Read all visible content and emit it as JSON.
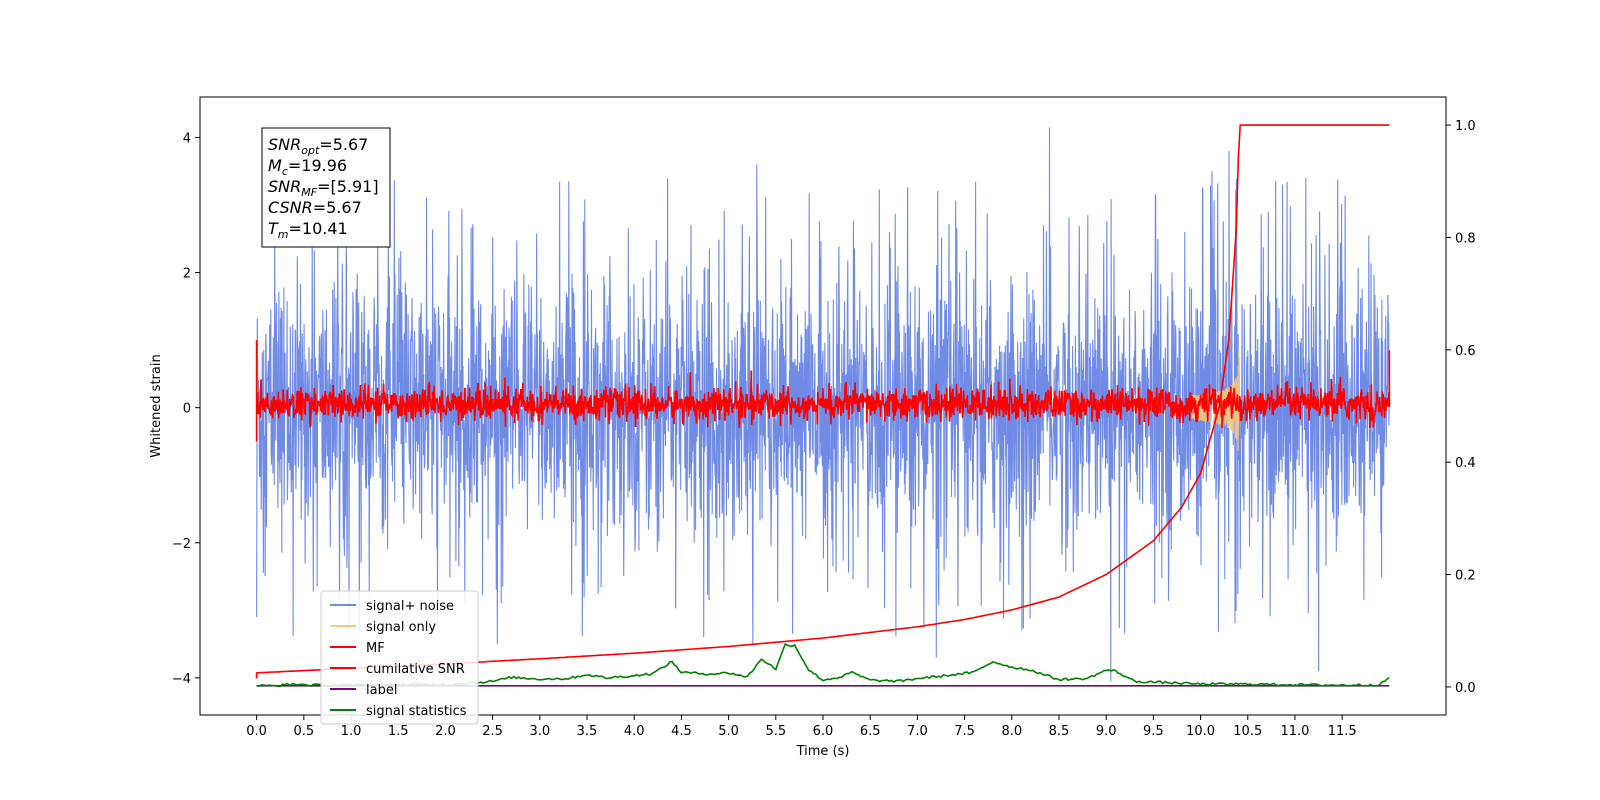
{
  "chart_data": {
    "type": "line",
    "title": "",
    "xlabel": "Time (s)",
    "ylabel": "Whitened strain",
    "ylabel_right": "",
    "xlim": [
      -0.6,
      12.6
    ],
    "ylim": [
      -4.55,
      4.6
    ],
    "ylim_right": [
      -0.05,
      1.05
    ],
    "grid": false,
    "legend_position": "lower-left",
    "x_ticks": [
      0.0,
      0.5,
      1.0,
      1.5,
      2.0,
      2.5,
      3.0,
      3.5,
      4.0,
      4.5,
      5.0,
      5.5,
      6.0,
      6.5,
      7.0,
      7.5,
      8.0,
      8.5,
      9.0,
      9.5,
      10.0,
      10.5,
      11.0,
      11.5
    ],
    "x_tick_labels": [
      "0.0",
      "0.5",
      "1.0",
      "1.5",
      "2.0",
      "2.5",
      "3.0",
      "3.5",
      "4.0",
      "4.5",
      "5.0",
      "5.5",
      "6.0",
      "6.5",
      "7.0",
      "7.5",
      "8.0",
      "8.5",
      "9.0",
      "9.5",
      "10.0",
      "10.5",
      "11.0",
      "11.5"
    ],
    "y_ticks": [
      -4,
      -2,
      0,
      2,
      4
    ],
    "y_tick_labels": [
      "−4",
      "−2",
      "0",
      "2",
      "4"
    ],
    "y_right_ticks": [
      0.0,
      0.2,
      0.4,
      0.6,
      0.8,
      1.0
    ],
    "y_right_tick_labels": [
      "0.0",
      "0.2",
      "0.4",
      "0.6",
      "0.8",
      "1.0"
    ],
    "series": [
      {
        "name": "signal+ noise",
        "axis": "left",
        "color": "#6f8be6",
        "description_values": "noise band roughly ±1.5 with spikes to about ±3.5; spikes near t=8.4 (4.15) and t=9.05 (-4.05)",
        "x_range": [
          0.0,
          12.0
        ],
        "envelope": [
          -1.5,
          1.5
        ],
        "peak_samples": [
          {
            "x": 0.0,
            "y": 3.1
          },
          {
            "x": 0.0,
            "y": -3.1
          },
          {
            "x": 5.3,
            "y": 3.6
          },
          {
            "x": 7.2,
            "y": -3.7
          },
          {
            "x": 8.4,
            "y": 4.15
          },
          {
            "x": 9.05,
            "y": -4.05
          },
          {
            "x": 10.3,
            "y": 3.8
          },
          {
            "x": 11.25,
            "y": -3.9
          }
        ]
      },
      {
        "name": "signal only",
        "axis": "left",
        "color": "#f5c97a",
        "chirp_peak_time": 10.41,
        "chirp_peak_amplitude": 1.1
      },
      {
        "name": "MF",
        "axis": "left",
        "color": "#ff0000",
        "x_range": [
          0.0,
          12.0
        ],
        "envelope": [
          -0.25,
          0.35
        ],
        "edge_values": [
          {
            "x": 0.0,
            "y": 1.0
          },
          {
            "x": 0.0,
            "y": -0.5
          },
          {
            "x": 12.0,
            "y": 0.85
          }
        ]
      },
      {
        "name": "cumilative SNR",
        "axis": "right",
        "color": "#ff0000",
        "x": [
          0.0,
          1.0,
          2.0,
          3.0,
          4.0,
          5.0,
          6.0,
          7.0,
          7.5,
          8.0,
          8.5,
          9.0,
          9.5,
          9.8,
          10.0,
          10.2,
          10.3,
          10.38,
          10.41,
          10.45,
          11.0,
          11.5,
          12.0
        ],
        "values": [
          0.025,
          0.033,
          0.041,
          0.05,
          0.06,
          0.072,
          0.087,
          0.107,
          0.12,
          0.137,
          0.16,
          0.2,
          0.26,
          0.32,
          0.38,
          0.5,
          0.62,
          0.82,
          1.0,
          1.0,
          1.0,
          1.0,
          1.0
        ]
      },
      {
        "name": "label",
        "axis": "right",
        "color": "#6a0d75",
        "x": [
          0.0,
          12.0
        ],
        "values": [
          0.002,
          0.002
        ]
      },
      {
        "name": "signal statistics",
        "axis": "right",
        "color": "#008000",
        "x": [
          0.0,
          0.2,
          0.4,
          0.6,
          0.8,
          1.0,
          1.5,
          2.0,
          2.5,
          2.7,
          3.0,
          3.3,
          3.5,
          3.7,
          4.0,
          4.2,
          4.4,
          4.5,
          4.8,
          5.0,
          5.2,
          5.35,
          5.5,
          5.6,
          5.7,
          5.85,
          6.0,
          6.2,
          6.3,
          6.5,
          6.8,
          7.0,
          7.3,
          7.6,
          7.8,
          8.0,
          8.2,
          8.5,
          8.8,
          9.0,
          9.1,
          9.3,
          9.6,
          10.0,
          10.5,
          11.0,
          11.5,
          11.9,
          12.0
        ],
        "values": [
          0.002,
          0.002,
          0.005,
          0.003,
          0.003,
          0.003,
          0.004,
          0.004,
          0.01,
          0.017,
          0.014,
          0.015,
          0.022,
          0.016,
          0.02,
          0.024,
          0.045,
          0.026,
          0.023,
          0.025,
          0.018,
          0.05,
          0.032,
          0.075,
          0.074,
          0.03,
          0.012,
          0.018,
          0.026,
          0.012,
          0.01,
          0.015,
          0.02,
          0.026,
          0.045,
          0.035,
          0.03,
          0.013,
          0.015,
          0.03,
          0.028,
          0.01,
          0.008,
          0.005,
          0.005,
          0.004,
          0.003,
          0.004,
          0.017
        ]
      }
    ],
    "annotation_box": {
      "lines": [
        {
          "symbol": "SNR",
          "sub": "opt",
          "rest": "=5.67"
        },
        {
          "symbol": "M",
          "sub": "c",
          "rest": "=19.96"
        },
        {
          "symbol": "SNR",
          "sub": "MF",
          "rest": "=[5.91]"
        },
        {
          "symbol": "CSNR",
          "sub": "",
          "rest": "=5.67"
        },
        {
          "symbol": "T",
          "sub": "m",
          "rest": "=10.41"
        }
      ]
    },
    "legend": [
      {
        "label": "signal+ noise",
        "color": "#6f8be6"
      },
      {
        "label": "signal only",
        "color": "#f5c97a"
      },
      {
        "label": "MF",
        "color": "#ff0000"
      },
      {
        "label": "cumilative SNR",
        "color": "#ff0000"
      },
      {
        "label": "label",
        "color": "#6a0d75"
      },
      {
        "label": "signal statistics",
        "color": "#008000"
      }
    ]
  }
}
